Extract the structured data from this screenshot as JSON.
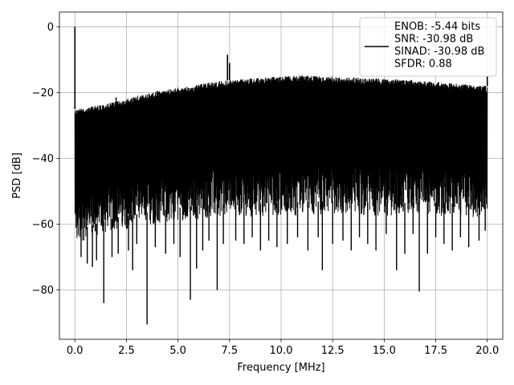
{
  "chart_data": {
    "type": "line",
    "title": "",
    "xlabel": "Frequency [MHz]",
    "ylabel": "PSD [dB]",
    "xlim": [
      -0.75,
      20.75
    ],
    "ylim": [
      -95,
      4.5
    ],
    "grid": true,
    "legend_placement": "top-right",
    "xticks": [
      0.0,
      2.5,
      5.0,
      7.5,
      10.0,
      12.5,
      15.0,
      17.5,
      20.0
    ],
    "xtick_labels": [
      "0.0",
      "2.5",
      "5.0",
      "7.5",
      "10.0",
      "12.5",
      "15.0",
      "17.5",
      "20.0"
    ],
    "yticks": [
      0,
      -20,
      -40,
      -60,
      -80
    ],
    "ytick_labels": [
      "0",
      "−20",
      "−40",
      "−60",
      "−80"
    ],
    "series": [
      {
        "name": "ENOB: -5.44 bits\nSNR: -30.98 dB\nSINAD: -30.98 dB\nSFDR: 0.88",
        "color": "#000000",
        "x_range": [
          0,
          20
        ],
        "upper_envelope": [
          [
            0.0,
            -25
          ],
          [
            0.5,
            -24.5
          ],
          [
            1.0,
            -24
          ],
          [
            1.5,
            -23.5
          ],
          [
            2.0,
            -22.5
          ],
          [
            2.5,
            -22
          ],
          [
            3.0,
            -21
          ],
          [
            3.5,
            -20.5
          ],
          [
            4.0,
            -19.5
          ],
          [
            5.0,
            -18.5
          ],
          [
            6.0,
            -17.5
          ],
          [
            7.0,
            -16.5
          ],
          [
            8.0,
            -16
          ],
          [
            9.0,
            -15.5
          ],
          [
            10.0,
            -15
          ],
          [
            11.0,
            -14.8
          ],
          [
            12.0,
            -15
          ],
          [
            13.0,
            -15.2
          ],
          [
            14.0,
            -15.5
          ],
          [
            15.0,
            -15.8
          ],
          [
            16.0,
            -16
          ],
          [
            17.0,
            -16.5
          ],
          [
            18.0,
            -17
          ],
          [
            19.0,
            -17.5
          ],
          [
            20.0,
            -18
          ]
        ],
        "lower_envelope": [
          [
            0.0,
            -66
          ],
          [
            1.0,
            -64
          ],
          [
            2.0,
            -62
          ],
          [
            3.0,
            -61
          ],
          [
            4.0,
            -60
          ],
          [
            5.0,
            -59
          ],
          [
            7.0,
            -58
          ],
          [
            10.0,
            -57.5
          ],
          [
            12.5,
            -57
          ],
          [
            15.0,
            -57.5
          ],
          [
            17.5,
            -57.5
          ],
          [
            20.0,
            -58
          ]
        ],
        "peaks": [
          [
            0.0,
            0.0
          ],
          [
            0.0,
            -24.0
          ],
          [
            7.4,
            -8.5
          ],
          [
            7.5,
            -11.0
          ],
          [
            2.0,
            -21.5
          ],
          [
            20.0,
            -15.0
          ]
        ],
        "dips": [
          [
            0.3,
            -70
          ],
          [
            0.6,
            -72
          ],
          [
            0.85,
            -73
          ],
          [
            1.05,
            -71
          ],
          [
            1.4,
            -84
          ],
          [
            1.8,
            -70
          ],
          [
            2.1,
            -69
          ],
          [
            2.6,
            -68
          ],
          [
            2.8,
            -74
          ],
          [
            3.0,
            -66
          ],
          [
            3.5,
            -90.5
          ],
          [
            3.9,
            -67
          ],
          [
            4.4,
            -69
          ],
          [
            4.8,
            -66
          ],
          [
            5.1,
            -70
          ],
          [
            5.6,
            -83
          ],
          [
            5.9,
            -73.5
          ],
          [
            6.2,
            -68
          ],
          [
            6.5,
            -65
          ],
          [
            6.9,
            -80
          ],
          [
            7.2,
            -66
          ],
          [
            7.8,
            -65
          ],
          [
            8.2,
            -66
          ],
          [
            8.6,
            -64
          ],
          [
            9.0,
            -68
          ],
          [
            9.4,
            -65
          ],
          [
            9.8,
            -67
          ],
          [
            10.3,
            -66
          ],
          [
            10.8,
            -64
          ],
          [
            11.3,
            -68
          ],
          [
            11.8,
            -64
          ],
          [
            12.0,
            -74
          ],
          [
            12.5,
            -66
          ],
          [
            13.0,
            -65
          ],
          [
            13.4,
            -68
          ],
          [
            13.8,
            -64
          ],
          [
            14.2,
            -66
          ],
          [
            14.6,
            -68
          ],
          [
            15.1,
            -63
          ],
          [
            15.6,
            -74
          ],
          [
            16.0,
            -69
          ],
          [
            16.4,
            -63
          ],
          [
            16.7,
            -80.5
          ],
          [
            17.1,
            -69
          ],
          [
            17.5,
            -64
          ],
          [
            17.9,
            -66
          ],
          [
            18.3,
            -68
          ],
          [
            18.7,
            -64
          ],
          [
            19.1,
            -67
          ],
          [
            19.6,
            -65
          ],
          [
            19.9,
            -62
          ]
        ]
      }
    ]
  }
}
